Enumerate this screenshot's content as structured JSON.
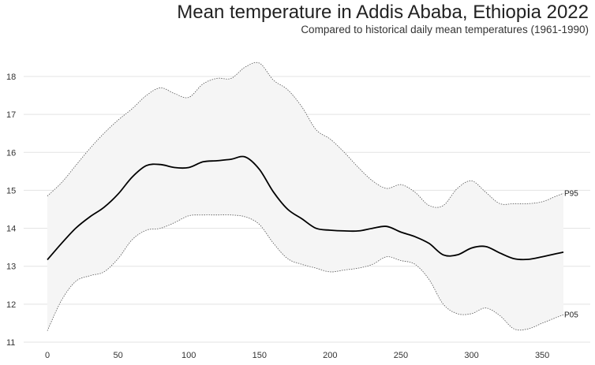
{
  "chart_data": {
    "type": "line",
    "title": "Mean temperature in Addis Ababa, Ethiopia 2022",
    "subtitle": "Compared to historical daily mean temperatures (1961-1990)",
    "xlabel": "",
    "ylabel": "",
    "xlim": [
      0,
      365
    ],
    "ylim": [
      11,
      18.7
    ],
    "x_ticks": [
      0,
      50,
      100,
      150,
      200,
      250,
      300,
      350
    ],
    "y_ticks": [
      11,
      12,
      13,
      14,
      15,
      16,
      17,
      18
    ],
    "grid": "horizontal",
    "colors": {
      "mean": "#000000",
      "band_fill": "#f5f5f5",
      "band_edge": "#555555",
      "grid": "#e3e3e3"
    },
    "series": [
      {
        "name": "Mean",
        "style": "solid",
        "x": [
          0,
          10,
          20,
          30,
          40,
          50,
          60,
          70,
          80,
          90,
          100,
          110,
          120,
          130,
          140,
          150,
          160,
          170,
          180,
          190,
          200,
          210,
          220,
          230,
          240,
          250,
          260,
          270,
          280,
          290,
          300,
          310,
          320,
          330,
          340,
          350,
          360,
          365
        ],
        "values": [
          13.17,
          13.6,
          14.0,
          14.3,
          14.55,
          14.9,
          15.35,
          15.65,
          15.68,
          15.6,
          15.6,
          15.75,
          15.78,
          15.82,
          15.88,
          15.55,
          14.95,
          14.5,
          14.25,
          14.0,
          13.95,
          13.93,
          13.93,
          14.0,
          14.05,
          13.9,
          13.78,
          13.6,
          13.3,
          13.3,
          13.48,
          13.52,
          13.35,
          13.2,
          13.18,
          13.25,
          13.33,
          13.37
        ]
      },
      {
        "name": "P95",
        "style": "dotted",
        "x": [
          0,
          10,
          20,
          30,
          40,
          50,
          60,
          70,
          80,
          90,
          100,
          110,
          120,
          130,
          140,
          150,
          160,
          170,
          180,
          190,
          200,
          210,
          220,
          230,
          240,
          250,
          260,
          270,
          280,
          290,
          300,
          310,
          320,
          330,
          340,
          350,
          360,
          365
        ],
        "values": [
          14.85,
          15.2,
          15.65,
          16.1,
          16.5,
          16.85,
          17.15,
          17.5,
          17.7,
          17.55,
          17.45,
          17.8,
          17.95,
          17.95,
          18.25,
          18.35,
          17.9,
          17.65,
          17.2,
          16.6,
          16.35,
          16.0,
          15.6,
          15.25,
          15.05,
          15.15,
          14.95,
          14.6,
          14.6,
          15.05,
          15.25,
          14.95,
          14.65,
          14.65,
          14.65,
          14.7,
          14.85,
          14.92
        ]
      },
      {
        "name": "P05",
        "style": "dotted",
        "x": [
          0,
          10,
          20,
          30,
          40,
          50,
          60,
          70,
          80,
          90,
          100,
          110,
          120,
          130,
          140,
          150,
          160,
          170,
          180,
          190,
          200,
          210,
          220,
          230,
          240,
          250,
          260,
          270,
          280,
          290,
          300,
          310,
          320,
          330,
          340,
          350,
          360,
          365
        ],
        "values": [
          11.3,
          12.1,
          12.6,
          12.75,
          12.85,
          13.2,
          13.7,
          13.95,
          14.0,
          14.15,
          14.33,
          14.35,
          14.35,
          14.35,
          14.3,
          14.1,
          13.6,
          13.2,
          13.05,
          12.95,
          12.85,
          12.9,
          12.95,
          13.05,
          13.25,
          13.15,
          13.05,
          12.65,
          12.0,
          11.75,
          11.75,
          11.9,
          11.7,
          11.35,
          11.35,
          11.5,
          11.65,
          11.72
        ]
      }
    ],
    "annotations": [
      {
        "text": "P95",
        "series": "P95"
      },
      {
        "text": "P05",
        "series": "P05"
      }
    ]
  }
}
